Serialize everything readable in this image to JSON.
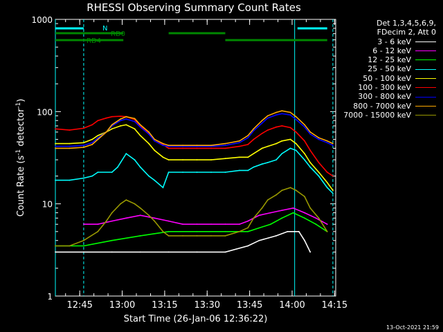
{
  "chart_data": {
    "type": "line",
    "title": "RHESSI Observing Summary Count Rates",
    "xlabel": "Start Time (26-Jan-06 12:36:22)",
    "ylabel_main": "Count Rate (s",
    "ylabel_sup1": "-1",
    "ylabel_mid": " detector",
    "ylabel_sup2": "-1",
    "ylabel_end": ")",
    "yscale": "log",
    "ylim": [
      1,
      1000
    ],
    "xlim_minutes": [
      0,
      99
    ],
    "x_ticks": [
      {
        "label": "12:45",
        "minute": 8.6
      },
      {
        "label": "13:00",
        "minute": 23.6
      },
      {
        "label": "13:15",
        "minute": 38.6
      },
      {
        "label": "13:30",
        "minute": 53.6
      },
      {
        "label": "13:45",
        "minute": 68.6
      },
      {
        "label": "14:00",
        "minute": 83.6
      },
      {
        "label": "14:15",
        "minute": 98.6
      }
    ],
    "y_ticks": [
      {
        "label": "1",
        "value": 1
      },
      {
        "label": "10",
        "value": 10
      },
      {
        "label": "100",
        "value": 100
      },
      {
        "label": "1000",
        "value": 1000
      }
    ],
    "legend_header": [
      "Det 1,3,4,5,6,9,",
      "FDecim 2, Att 0"
    ],
    "series": [
      {
        "name": "3 - 6 keV",
        "color": "#ffffff",
        "x": [
          0,
          10,
          20,
          30,
          40,
          50,
          60,
          68,
          72,
          78,
          82,
          86,
          88,
          90
        ],
        "y": [
          3,
          3,
          3,
          3,
          3,
          3,
          3,
          3.5,
          4,
          4.5,
          5,
          5,
          4,
          3
        ]
      },
      {
        "name": "6 - 12 keV",
        "color": "#ff00ff",
        "x": [
          10,
          15,
          20,
          25,
          30,
          35,
          40,
          45,
          50,
          55,
          60,
          65,
          68,
          72,
          76,
          80,
          84,
          88,
          92,
          96
        ],
        "y": [
          6,
          6,
          6.5,
          7,
          7.5,
          7,
          6.5,
          6,
          6,
          6,
          6,
          6,
          6.5,
          7.5,
          8,
          8.5,
          9,
          8,
          7,
          6
        ]
      },
      {
        "name": "12 - 25 keV",
        "color": "#00ff00",
        "x": [
          0,
          10,
          20,
          30,
          40,
          50,
          60,
          68,
          76,
          80,
          84,
          88,
          92,
          96
        ],
        "y": [
          3.5,
          3.5,
          4,
          4.5,
          5,
          5,
          5,
          5,
          6,
          7,
          8,
          7,
          6,
          5
        ]
      },
      {
        "name": "25 - 50 keV",
        "color": "#00ffff",
        "x": [
          0,
          5,
          10,
          13,
          15,
          20,
          22,
          25,
          28,
          30,
          33,
          35,
          38,
          40,
          45,
          50,
          55,
          60,
          65,
          68,
          70,
          73,
          75,
          78,
          80,
          83,
          85,
          88,
          90,
          93,
          96,
          98
        ],
        "y": [
          18,
          18,
          19,
          20,
          22,
          22,
          25,
          35,
          30,
          25,
          20,
          18,
          15,
          22,
          22,
          22,
          22,
          22,
          23,
          23,
          25,
          27,
          28,
          30,
          35,
          40,
          38,
          30,
          25,
          20,
          15,
          13
        ]
      },
      {
        "name": "50 - 100 keV",
        "color": "#ffff00",
        "x": [
          0,
          5,
          10,
          13,
          15,
          18,
          20,
          23,
          25,
          28,
          30,
          33,
          35,
          38,
          40,
          45,
          50,
          55,
          60,
          65,
          68,
          70,
          73,
          75,
          78,
          80,
          83,
          85,
          88,
          90,
          93,
          96,
          98
        ],
        "y": [
          45,
          45,
          46,
          50,
          55,
          60,
          65,
          70,
          72,
          65,
          55,
          45,
          38,
          32,
          30,
          30,
          30,
          30,
          31,
          32,
          32,
          35,
          40,
          42,
          45,
          48,
          50,
          45,
          35,
          28,
          22,
          17,
          14
        ]
      },
      {
        "name": "100 - 300 keV",
        "color": "#ff0000",
        "x": [
          0,
          5,
          10,
          13,
          15,
          18,
          20,
          23,
          25,
          28,
          30,
          33,
          35,
          38,
          40,
          45,
          50,
          55,
          60,
          65,
          68,
          70,
          73,
          75,
          78,
          80,
          83,
          85,
          88,
          90,
          93,
          96,
          98
        ],
        "y": [
          65,
          63,
          66,
          72,
          80,
          85,
          88,
          89,
          88,
          82,
          70,
          58,
          50,
          44,
          40,
          40,
          40,
          40,
          40,
          42,
          44,
          50,
          58,
          63,
          68,
          70,
          67,
          60,
          48,
          38,
          28,
          22,
          20
        ]
      },
      {
        "name": "300 - 800 keV",
        "color": "#0000ff",
        "x": [
          0,
          5,
          10,
          13,
          15,
          18,
          20,
          23,
          25,
          28,
          30,
          33,
          35,
          38,
          40,
          45,
          50,
          55,
          60,
          65,
          68,
          70,
          73,
          75,
          78,
          80,
          83,
          85,
          88,
          90,
          93,
          96,
          98
        ],
        "y": [
          42,
          42,
          43,
          46,
          52,
          60,
          70,
          80,
          83,
          78,
          68,
          57,
          48,
          43,
          42,
          42,
          42,
          42,
          43,
          46,
          52,
          62,
          75,
          85,
          92,
          95,
          92,
          82,
          68,
          57,
          50,
          46,
          43
        ]
      },
      {
        "name": "800 - 7000 keV",
        "color": "#ffaa00",
        "x": [
          0,
          5,
          10,
          13,
          15,
          18,
          20,
          23,
          25,
          28,
          30,
          33,
          35,
          38,
          40,
          45,
          50,
          55,
          60,
          65,
          68,
          70,
          73,
          75,
          78,
          80,
          83,
          85,
          88,
          90,
          93,
          96,
          98
        ],
        "y": [
          40,
          40,
          41,
          44,
          50,
          60,
          72,
          83,
          88,
          84,
          72,
          60,
          50,
          45,
          43,
          43,
          43,
          43,
          45,
          48,
          55,
          65,
          80,
          90,
          98,
          102,
          98,
          88,
          72,
          60,
          52,
          48,
          45
        ]
      },
      {
        "name": "7000 - 15000 keV",
        "color": "#999900",
        "x": [
          0,
          5,
          10,
          15,
          18,
          20,
          23,
          25,
          28,
          30,
          33,
          35,
          38,
          40,
          45,
          50,
          55,
          60,
          65,
          68,
          70,
          73,
          75,
          78,
          80,
          83,
          85,
          88,
          90,
          93,
          96
        ],
        "y": [
          3.5,
          3.5,
          4,
          5,
          6.5,
          8,
          10,
          11,
          10,
          9,
          7.5,
          6.5,
          5,
          4.5,
          4.5,
          4.5,
          4.5,
          4.5,
          5,
          5.5,
          7,
          9,
          11,
          12.5,
          14,
          15,
          14,
          12,
          9,
          7,
          5
        ]
      }
    ],
    "annotations": [
      {
        "text": "N",
        "color": "#00ffff"
      },
      {
        "text": "RD0",
        "color": "#008800"
      },
      {
        "text": "RD4",
        "color": "#008800"
      }
    ],
    "state_bars": {
      "n_minutes": [
        [
          0,
          10
        ],
        [
          85.5,
          96
        ]
      ],
      "rd0_minutes": [
        [
          0,
          24
        ],
        [
          40,
          60
        ]
      ],
      "rd4_minutes": [
        [
          0,
          24
        ],
        [
          60,
          96
        ]
      ]
    },
    "vlines_minutes_cyan": [
      0,
      10,
      84.5,
      98
    ],
    "axis_color": "#ffffff",
    "timestamp": "13-Oct-2021 21:59"
  }
}
